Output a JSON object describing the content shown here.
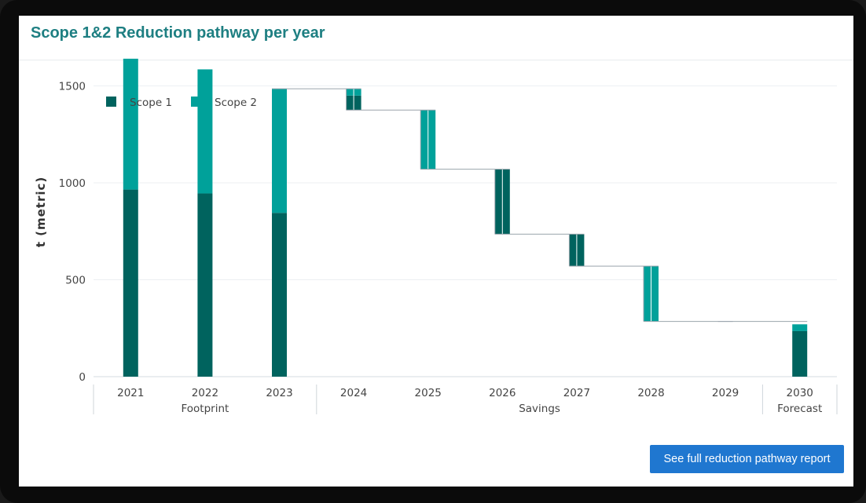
{
  "card": {
    "title": "Scope 1&2 Reduction pathway per year",
    "button_label": "See full reduction pathway report"
  },
  "colors": {
    "scope1": "#00635e",
    "scope2": "#00a19a",
    "title": "#1e7f82",
    "button": "#1f77d0",
    "connector": "#9aa4ac"
  },
  "chart_data": {
    "type": "waterfall",
    "ylabel": "t (metric)",
    "ylim": [
      0,
      1700
    ],
    "yticks": [
      0,
      500,
      1000,
      1500
    ],
    "legend": [
      "Scope 1",
      "Scope 2"
    ],
    "legend_position": "top-left",
    "grid": true,
    "categories": [
      "2021",
      "2022",
      "2023",
      "2024",
      "2025",
      "2026",
      "2027",
      "2028",
      "2029",
      "2030"
    ],
    "groups": [
      {
        "label": "Footprint",
        "categories": [
          "2021",
          "2022",
          "2023"
        ]
      },
      {
        "label": "Savings",
        "categories": [
          "2024",
          "2025",
          "2026",
          "2027",
          "2028",
          "2029"
        ]
      },
      {
        "label": "Forecast",
        "categories": [
          "2030"
        ]
      }
    ],
    "series": [
      {
        "name": "Scope 1",
        "values": [
          965,
          945,
          845,
          75,
          0,
          335,
          165,
          0,
          0,
          235
        ]
      },
      {
        "name": "Scope 2",
        "values": [
          675,
          640,
          640,
          35,
          305,
          0,
          0,
          285,
          0,
          35
        ]
      }
    ],
    "bar_types": [
      "total",
      "total",
      "total",
      "saving",
      "saving",
      "saving",
      "saving",
      "saving",
      "saving",
      "total"
    ]
  }
}
